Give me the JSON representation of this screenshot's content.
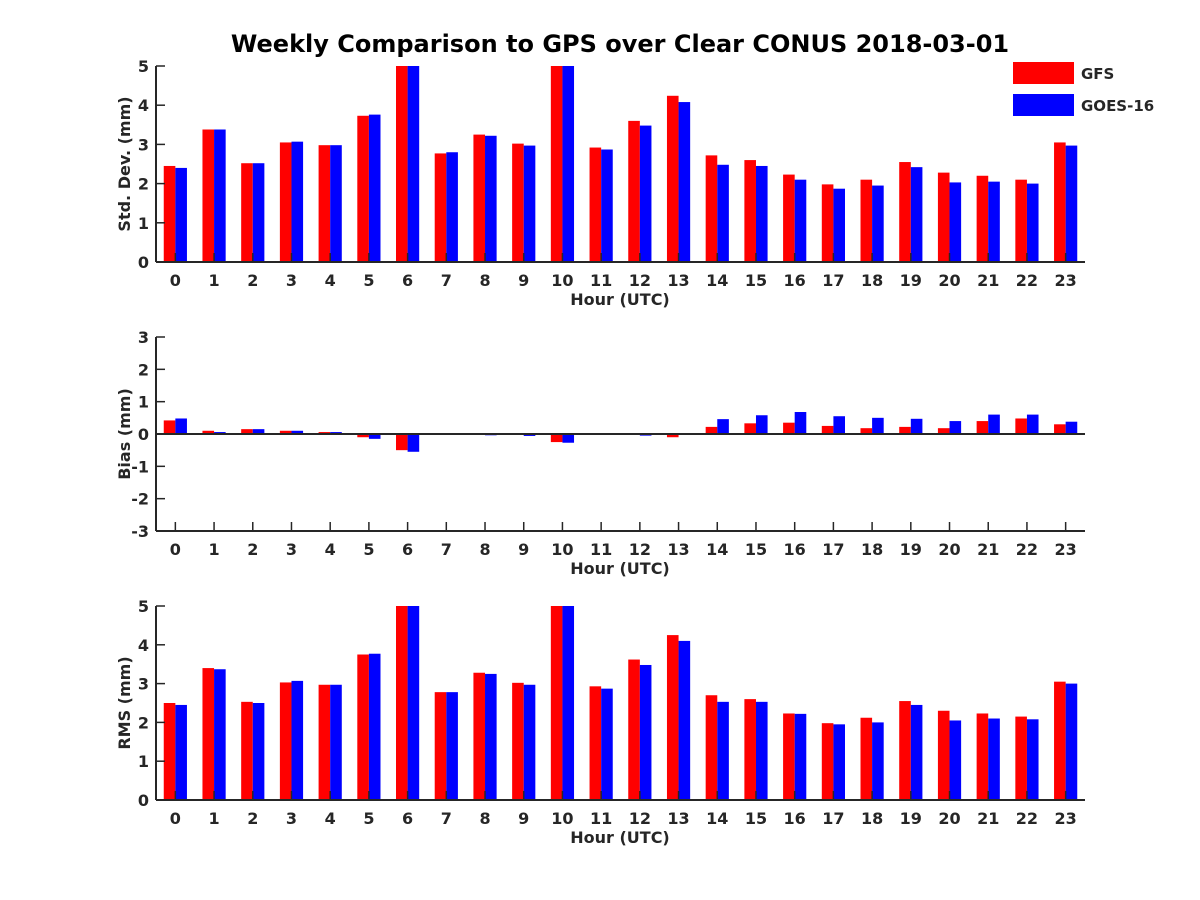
{
  "title": "Weekly Comparison to GPS over Clear CONUS 2018-03-01",
  "colors": {
    "GFS": "#ff0000",
    "GOES-16": "#0000ff"
  },
  "legend": {
    "items": [
      "GFS",
      "GOES-16"
    ],
    "placement": "top-right"
  },
  "chart_data": [
    {
      "type": "bar",
      "title": "Weekly Comparison to GPS over Clear CONUS 2018-03-01",
      "xlabel": "Hour (UTC)",
      "ylabel": "Std. Dev. (mm)",
      "ylim": [
        0,
        5
      ],
      "yticks": [
        0,
        1,
        2,
        3,
        4,
        5
      ],
      "categories": [
        "0",
        "1",
        "2",
        "3",
        "4",
        "5",
        "6",
        "7",
        "8",
        "9",
        "10",
        "11",
        "12",
        "13",
        "14",
        "15",
        "16",
        "17",
        "18",
        "19",
        "20",
        "21",
        "22",
        "23"
      ],
      "series": [
        {
          "name": "GFS",
          "values": [
            2.45,
            3.38,
            2.52,
            3.05,
            2.98,
            3.73,
            5.0,
            2.77,
            3.25,
            3.02,
            5.0,
            2.92,
            3.6,
            4.24,
            2.72,
            2.6,
            2.23,
            1.98,
            2.1,
            2.55,
            2.28,
            2.2,
            2.1,
            3.05
          ]
        },
        {
          "name": "GOES-16",
          "values": [
            2.4,
            3.38,
            2.52,
            3.07,
            2.98,
            3.76,
            5.0,
            2.8,
            3.22,
            2.97,
            5.0,
            2.87,
            3.48,
            4.08,
            2.48,
            2.45,
            2.1,
            1.87,
            1.95,
            2.42,
            2.03,
            2.05,
            2.0,
            2.97
          ]
        }
      ]
    },
    {
      "type": "bar",
      "xlabel": "Hour (UTC)",
      "ylabel": "Bias (mm)",
      "ylim": [
        -3,
        3
      ],
      "yticks": [
        -3,
        -2,
        -1,
        0,
        1,
        2,
        3
      ],
      "categories": [
        "0",
        "1",
        "2",
        "3",
        "4",
        "5",
        "6",
        "7",
        "8",
        "9",
        "10",
        "11",
        "12",
        "13",
        "14",
        "15",
        "16",
        "17",
        "18",
        "19",
        "20",
        "21",
        "22",
        "23"
      ],
      "series": [
        {
          "name": "GFS",
          "values": [
            0.42,
            0.1,
            0.15,
            0.1,
            0.06,
            -0.1,
            -0.5,
            0.0,
            -0.02,
            -0.03,
            -0.25,
            0.0,
            -0.03,
            -0.1,
            0.22,
            0.33,
            0.35,
            0.25,
            0.18,
            0.22,
            0.18,
            0.4,
            0.48,
            0.3
          ]
        },
        {
          "name": "GOES-16",
          "values": [
            0.48,
            0.06,
            0.15,
            0.1,
            0.06,
            -0.15,
            -0.55,
            0.0,
            -0.04,
            -0.06,
            -0.27,
            0.0,
            -0.05,
            0.02,
            0.46,
            0.58,
            0.68,
            0.55,
            0.5,
            0.47,
            0.4,
            0.6,
            0.6,
            0.38
          ]
        }
      ]
    },
    {
      "type": "bar",
      "xlabel": "Hour (UTC)",
      "ylabel": "RMS (mm)",
      "ylim": [
        0,
        5
      ],
      "yticks": [
        0,
        1,
        2,
        3,
        4,
        5
      ],
      "categories": [
        "0",
        "1",
        "2",
        "3",
        "4",
        "5",
        "6",
        "7",
        "8",
        "9",
        "10",
        "11",
        "12",
        "13",
        "14",
        "15",
        "16",
        "17",
        "18",
        "19",
        "20",
        "21",
        "22",
        "23"
      ],
      "series": [
        {
          "name": "GFS",
          "values": [
            2.5,
            3.4,
            2.53,
            3.03,
            2.97,
            3.75,
            5.0,
            2.78,
            3.28,
            3.02,
            5.0,
            2.93,
            3.62,
            4.25,
            2.7,
            2.6,
            2.23,
            1.98,
            2.12,
            2.55,
            2.3,
            2.23,
            2.15,
            3.05
          ]
        },
        {
          "name": "GOES-16",
          "values": [
            2.45,
            3.37,
            2.5,
            3.07,
            2.97,
            3.77,
            5.0,
            2.78,
            3.25,
            2.97,
            5.0,
            2.87,
            3.48,
            4.1,
            2.53,
            2.53,
            2.22,
            1.95,
            2.0,
            2.45,
            2.05,
            2.1,
            2.08,
            3.0
          ]
        }
      ]
    }
  ]
}
